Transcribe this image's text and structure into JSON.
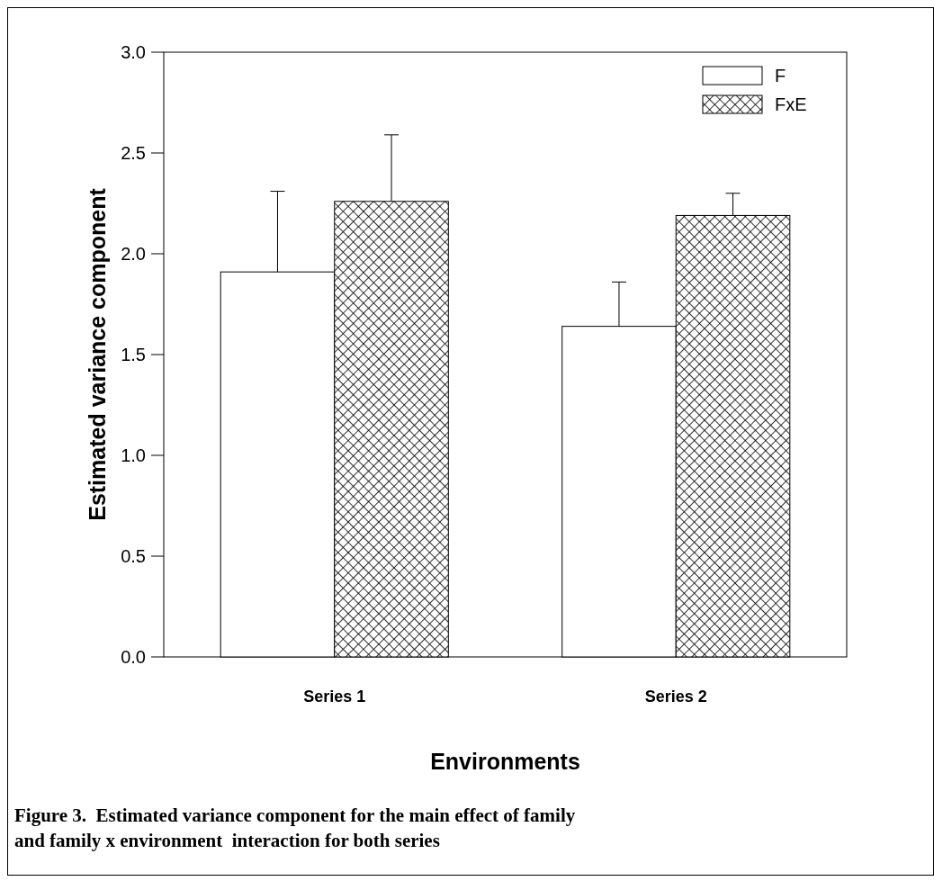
{
  "chart_data": {
    "type": "bar",
    "xlabel": "Environments",
    "ylabel": "Estimated variance component",
    "categories": [
      "Series 1",
      "Series 2"
    ],
    "series": [
      {
        "name": "F",
        "color": "#ffffff",
        "values": [
          1.91,
          1.64
        ],
        "errors": [
          [
            1.91,
            2.31
          ],
          [
            1.64,
            1.86
          ]
        ]
      },
      {
        "name": "FxE",
        "color": "#000000",
        "values": [
          2.26,
          2.19
        ],
        "errors": [
          [
            2.26,
            2.59
          ],
          [
            2.19,
            2.3
          ]
        ]
      }
    ],
    "ylim": [
      0,
      3
    ],
    "yticks": [
      {
        "value": 0,
        "label": "0.0"
      },
      {
        "value": 0.5,
        "label": "0.5"
      },
      {
        "value": 1,
        "label": "1.0"
      },
      {
        "value": 1.5,
        "label": "1.5"
      },
      {
        "value": 2,
        "label": "2.0"
      },
      {
        "value": 2.5,
        "label": "2.5"
      },
      {
        "value": 3,
        "label": "3.0"
      }
    ],
    "legend": "top right",
    "annotations": [
      "Figure 3.  Estimated variance component for the main effect of family and family x environment  interaction for both series"
    ]
  }
}
